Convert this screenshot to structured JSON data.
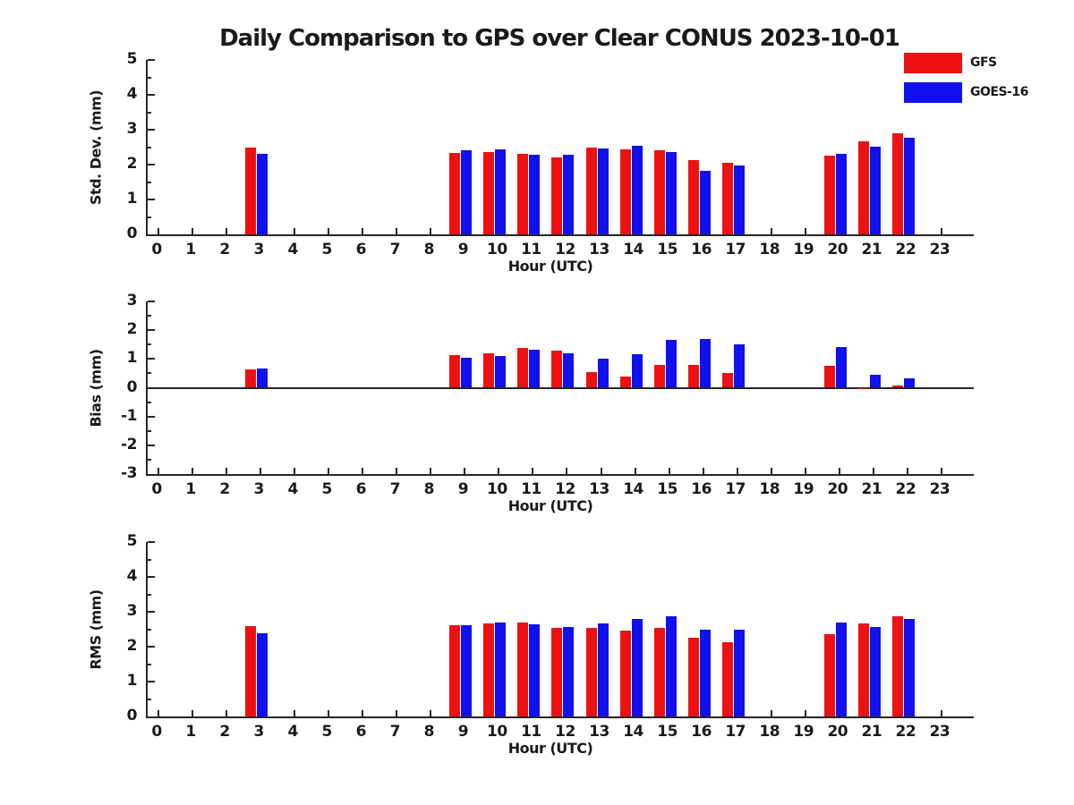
{
  "title": "Daily Comparison to GPS over Clear CONUS 2023-10-01",
  "legend": {
    "items": [
      {
        "label": "GFS",
        "color": "#ee1111"
      },
      {
        "label": "GOES-16",
        "color": "#1111ee"
      }
    ],
    "position": "top-right"
  },
  "colors": {
    "gfs": "#ee1111",
    "goes16": "#1111ee",
    "axis": "#262626"
  },
  "x_tick_labels": [
    "0",
    "1",
    "2",
    "3",
    "4",
    "5",
    "6",
    "7",
    "8",
    "9",
    "10",
    "11",
    "12",
    "13",
    "14",
    "15",
    "16",
    "17",
    "18",
    "19",
    "20",
    "21",
    "22",
    "23"
  ],
  "chart_data": [
    {
      "type": "bar",
      "panel": "std-dev",
      "ylabel": "Std. Dev. (mm)",
      "xlabel": "Hour (UTC)",
      "ylim": [
        0,
        5
      ],
      "yticks": [
        0,
        1,
        2,
        3,
        4,
        5
      ],
      "xlim": [
        0,
        23
      ],
      "grid": false,
      "x": [
        3,
        9,
        10,
        11,
        12,
        13,
        14,
        15,
        16,
        17,
        20,
        21,
        22
      ],
      "series": [
        {
          "name": "GFS",
          "color": "#ee1111",
          "values": [
            2.5,
            2.34,
            2.37,
            2.31,
            2.21,
            2.49,
            2.43,
            2.42,
            2.12,
            2.06,
            2.26,
            2.66,
            2.9
          ]
        },
        {
          "name": "GOES-16",
          "color": "#1111ee",
          "values": [
            2.31,
            2.41,
            2.44,
            2.28,
            2.28,
            2.46,
            2.53,
            2.36,
            1.82,
            1.97,
            2.31,
            2.51,
            2.77
          ]
        }
      ]
    },
    {
      "type": "bar",
      "panel": "bias",
      "ylabel": "Bias (mm)",
      "xlabel": "Hour (UTC)",
      "ylim": [
        -3,
        3
      ],
      "yticks": [
        -3,
        -2,
        -1,
        0,
        1,
        2,
        3
      ],
      "xlim": [
        0,
        23
      ],
      "grid": false,
      "zero_line": true,
      "x": [
        3,
        9,
        10,
        11,
        12,
        13,
        14,
        15,
        16,
        17,
        20,
        21,
        22
      ],
      "series": [
        {
          "name": "GFS",
          "color": "#ee1111",
          "values": [
            0.64,
            1.14,
            1.2,
            1.38,
            1.28,
            0.55,
            0.4,
            0.8,
            0.8,
            0.5,
            0.77,
            -0.05,
            0.08
          ]
        },
        {
          "name": "GOES-16",
          "color": "#1111ee",
          "values": [
            0.67,
            1.04,
            1.11,
            1.31,
            1.2,
            1.02,
            1.17,
            1.65,
            1.7,
            1.51,
            1.43,
            0.45,
            0.34
          ]
        }
      ]
    },
    {
      "type": "bar",
      "panel": "rms",
      "ylabel": "RMS (mm)",
      "xlabel": "Hour (UTC)",
      "ylim": [
        0,
        5
      ],
      "yticks": [
        0,
        1,
        2,
        3,
        4,
        5
      ],
      "xlim": [
        0,
        23
      ],
      "grid": false,
      "x": [
        3,
        9,
        10,
        11,
        12,
        13,
        14,
        15,
        16,
        17,
        20,
        21,
        22
      ],
      "series": [
        {
          "name": "GFS",
          "color": "#ee1111",
          "values": [
            2.6,
            2.61,
            2.66,
            2.7,
            2.55,
            2.55,
            2.46,
            2.53,
            2.25,
            2.12,
            2.37,
            2.66,
            2.87
          ]
        },
        {
          "name": "GOES-16",
          "color": "#1111ee",
          "values": [
            2.38,
            2.62,
            2.68,
            2.65,
            2.56,
            2.66,
            2.79,
            2.87,
            2.49,
            2.5,
            2.69,
            2.56,
            2.79
          ]
        }
      ]
    }
  ]
}
